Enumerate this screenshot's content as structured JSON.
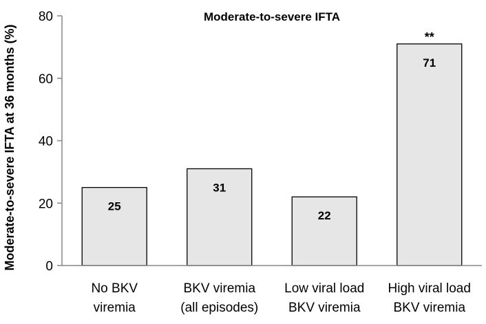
{
  "chart_data": {
    "type": "bar",
    "title": "Moderate-to-severe IFTA",
    "ylabel": "Moderate-to-severe IFTA at 36 months (%)",
    "xlabel": "",
    "ylim": [
      0,
      80
    ],
    "yticks": [
      0,
      20,
      40,
      60,
      80
    ],
    "categories": [
      [
        "No BKV",
        "viremia"
      ],
      [
        "BKV viremia",
        "(all episodes)"
      ],
      [
        "Low viral load",
        "BKV viremia"
      ],
      [
        "High viral load",
        "BKV viremia"
      ]
    ],
    "values": [
      25,
      31,
      22,
      71
    ],
    "data_labels": [
      "25",
      "31",
      "22",
      "71"
    ],
    "annotations": [
      "",
      "",
      "",
      "**"
    ],
    "bar_color": "#e6e6e6",
    "bar_edge_color": "#000000",
    "grid": false,
    "legend": "none"
  }
}
